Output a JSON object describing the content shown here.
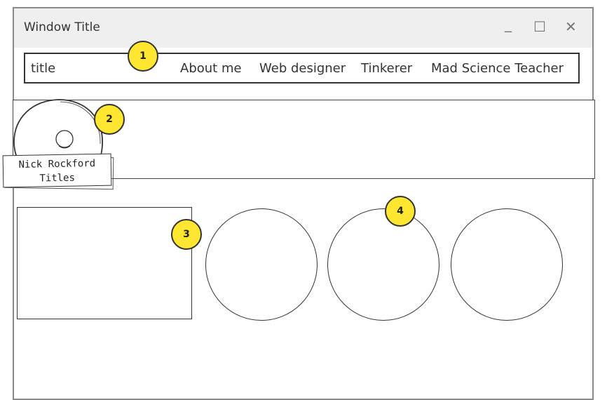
{
  "window": {
    "title": "Window Title",
    "controls": {
      "minimize": "_",
      "maximize": "☐",
      "close": "✕"
    }
  },
  "navbar": {
    "title": "title",
    "links": [
      "About me",
      "Web designer",
      "Tinkerer",
      "Mad Science Teacher"
    ]
  },
  "profile": {
    "name": "Nick Rockford",
    "titles": "Titles"
  },
  "annotations": [
    "1",
    "2",
    "3",
    "4"
  ],
  "colors": {
    "badge": "#ffe631",
    "titlebar": "#efefef",
    "border": "#333333"
  }
}
